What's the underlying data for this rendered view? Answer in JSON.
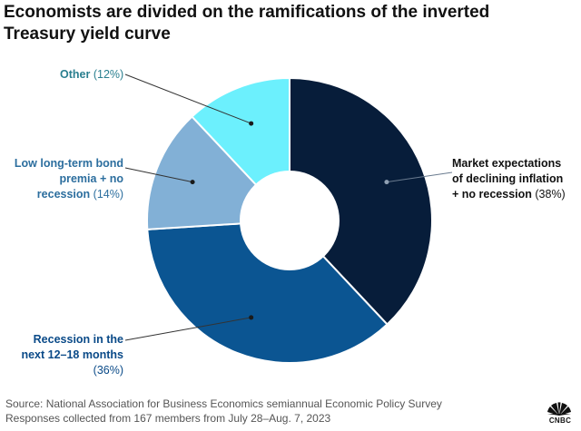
{
  "header": {
    "title": "Economists are divided on the ramifications of the inverted Treasury yield curve"
  },
  "chart_data": {
    "type": "pie",
    "title": "Economists are divided on the ramifications of the inverted Treasury yield curve",
    "donut": true,
    "slices": [
      {
        "label": "Market expectations of declining inflation + no recession",
        "value": 38,
        "color": "#071d3a"
      },
      {
        "label": "Recession in the next 12–18 months",
        "value": 36,
        "color": "#0b5592"
      },
      {
        "label": "Low long-term bond premia + no recession",
        "value": 14,
        "color": "#82b0d6"
      },
      {
        "label": "Other",
        "value": 12,
        "color": "#6cf0fd"
      }
    ]
  },
  "labels": {
    "other": {
      "name": "Other",
      "pct": "(12%)"
    },
    "low": {
      "line1": "Low long-term bond",
      "line2": "premia + no",
      "line3": "recession",
      "pct": "(14%)"
    },
    "market": {
      "line1": "Market expectations",
      "line2": "of declining inflation",
      "line3": "+ no recession",
      "pct": "(38%)"
    },
    "recession": {
      "line1": "Recession in the",
      "line2": "next 12–18 months",
      "pct": "(36%)"
    }
  },
  "footer": {
    "source": "Source: National Association for Business Economics semiannual Economic Policy Survey",
    "note": "Responses collected from 167 members from July 28–Aug. 7, 2023"
  },
  "logo": {
    "text": "CNBC"
  }
}
